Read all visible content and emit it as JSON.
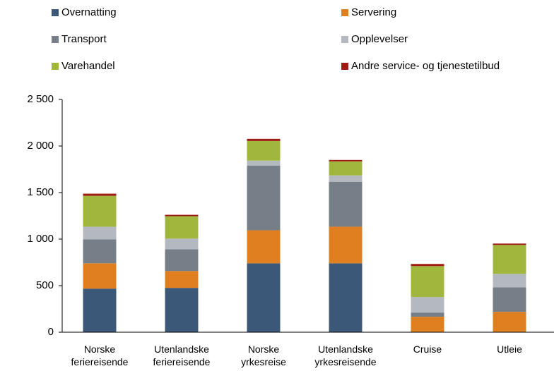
{
  "chart_data": {
    "type": "stacked_bar",
    "categories": [
      "Norske feriereisende",
      "Utenlandske feriereisende",
      "Norske yrkesreise",
      "Utenlandske yrkesreisende",
      "Cruise",
      "Utleie"
    ],
    "series": [
      {
        "name": "Overnatting",
        "color": "#3b5878",
        "values": [
          468,
          476,
          740,
          740,
          0,
          0
        ]
      },
      {
        "name": "Servering",
        "color": "#e07f1f",
        "values": [
          272,
          181,
          355,
          393,
          166,
          219
        ]
      },
      {
        "name": "Transport",
        "color": "#767f87",
        "values": [
          257,
          234,
          695,
          483,
          45,
          264
        ]
      },
      {
        "name": "Opplevelser",
        "color": "#b4b9bf",
        "values": [
          136,
          114,
          53,
          68,
          167,
          144
        ]
      },
      {
        "name": "Varehandel",
        "color": "#a1b63c",
        "values": [
          332,
          241,
          211,
          151,
          332,
          310
        ]
      },
      {
        "name": "Andre service- og tjenestetilbud",
        "color": "#a01a14",
        "values": [
          23,
          15,
          23,
          15,
          23,
          15
        ]
      }
    ],
    "ylim": [
      0,
      2500
    ],
    "yticks": [
      0,
      500,
      {
        "value": 1000,
        "label": "1 000"
      },
      {
        "value": 1500,
        "label": "1 500"
      },
      {
        "value": 2000,
        "label": "2 000"
      },
      {
        "value": 2500,
        "label": "2 500"
      }
    ]
  }
}
